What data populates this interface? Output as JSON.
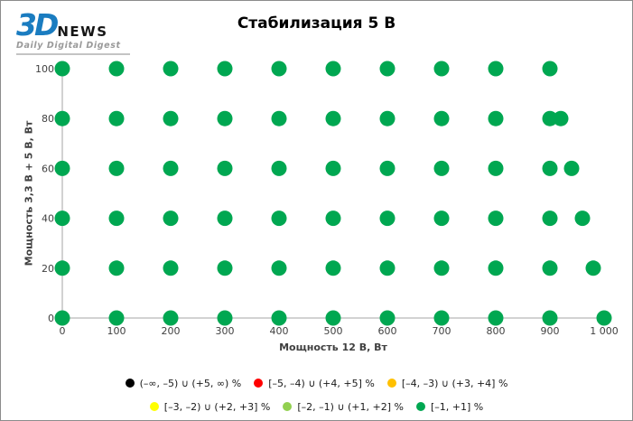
{
  "logo": {
    "brand_3d": "3D",
    "brand_news": "NEWS",
    "tagline": "Daily Digital Digest"
  },
  "chart_data": {
    "type": "scatter",
    "title": "Стабилизация 5 В",
    "xlabel": "Мощность  12 В, Вт",
    "ylabel": "Мощность  3,3 В + 5 В, Вт",
    "xlim": [
      0,
      1000
    ],
    "ylim": [
      0,
      100
    ],
    "x_ticks": [
      0,
      100,
      200,
      300,
      400,
      500,
      600,
      700,
      800,
      900,
      1000
    ],
    "x_tick_labels": [
      "0",
      "100",
      "200",
      "300",
      "400",
      "500",
      "600",
      "700",
      "800",
      "900",
      "1 000"
    ],
    "y_ticks": [
      0,
      20,
      40,
      60,
      80,
      100
    ],
    "y_tick_labels": [
      "0",
      "20",
      "40",
      "60",
      "80",
      "100"
    ],
    "grid": false,
    "legend_position": "bottom",
    "axis_color": "#a6a6a6",
    "series": [
      {
        "name": "[–1, +1] %",
        "color": "#00a751",
        "marker": "circle",
        "marker_radius_px": 8.5,
        "points": [
          [
            0,
            0
          ],
          [
            100,
            0
          ],
          [
            200,
            0
          ],
          [
            300,
            0
          ],
          [
            400,
            0
          ],
          [
            500,
            0
          ],
          [
            600,
            0
          ],
          [
            700,
            0
          ],
          [
            800,
            0
          ],
          [
            900,
            0
          ],
          [
            1000,
            0
          ],
          [
            0,
            20
          ],
          [
            100,
            20
          ],
          [
            200,
            20
          ],
          [
            300,
            20
          ],
          [
            400,
            20
          ],
          [
            500,
            20
          ],
          [
            600,
            20
          ],
          [
            700,
            20
          ],
          [
            800,
            20
          ],
          [
            900,
            20
          ],
          [
            980,
            20
          ],
          [
            0,
            40
          ],
          [
            100,
            40
          ],
          [
            200,
            40
          ],
          [
            300,
            40
          ],
          [
            400,
            40
          ],
          [
            500,
            40
          ],
          [
            600,
            40
          ],
          [
            700,
            40
          ],
          [
            800,
            40
          ],
          [
            900,
            40
          ],
          [
            960,
            40
          ],
          [
            0,
            60
          ],
          [
            100,
            60
          ],
          [
            200,
            60
          ],
          [
            300,
            60
          ],
          [
            400,
            60
          ],
          [
            500,
            60
          ],
          [
            600,
            60
          ],
          [
            700,
            60
          ],
          [
            800,
            60
          ],
          [
            900,
            60
          ],
          [
            940,
            60
          ],
          [
            0,
            80
          ],
          [
            100,
            80
          ],
          [
            200,
            80
          ],
          [
            300,
            80
          ],
          [
            400,
            80
          ],
          [
            500,
            80
          ],
          [
            600,
            80
          ],
          [
            700,
            80
          ],
          [
            800,
            80
          ],
          [
            900,
            80
          ],
          [
            920,
            80
          ],
          [
            0,
            100
          ],
          [
            100,
            100
          ],
          [
            200,
            100
          ],
          [
            300,
            100
          ],
          [
            400,
            100
          ],
          [
            500,
            100
          ],
          [
            600,
            100
          ],
          [
            700,
            100
          ],
          [
            800,
            100
          ],
          [
            900,
            100
          ]
        ]
      }
    ]
  },
  "legend": {
    "rows": [
      [
        {
          "color": "#000000",
          "label": "(–∞, –5) ∪ (+5, ∞) %"
        },
        {
          "color": "#ff0000",
          "label": "[–5, –4) ∪ (+4, +5] %"
        },
        {
          "color": "#ffc000",
          "label": "[–4, –3) ∪ (+3, +4] %"
        }
      ],
      [
        {
          "color": "#ffff00",
          "label": "[–3, –2) ∪ (+2, +3] %"
        },
        {
          "color": "#92d050",
          "label": "[–2, –1) ∪ (+1, +2] %"
        },
        {
          "color": "#00a751",
          "label": "[–1, +1] %"
        }
      ]
    ]
  }
}
